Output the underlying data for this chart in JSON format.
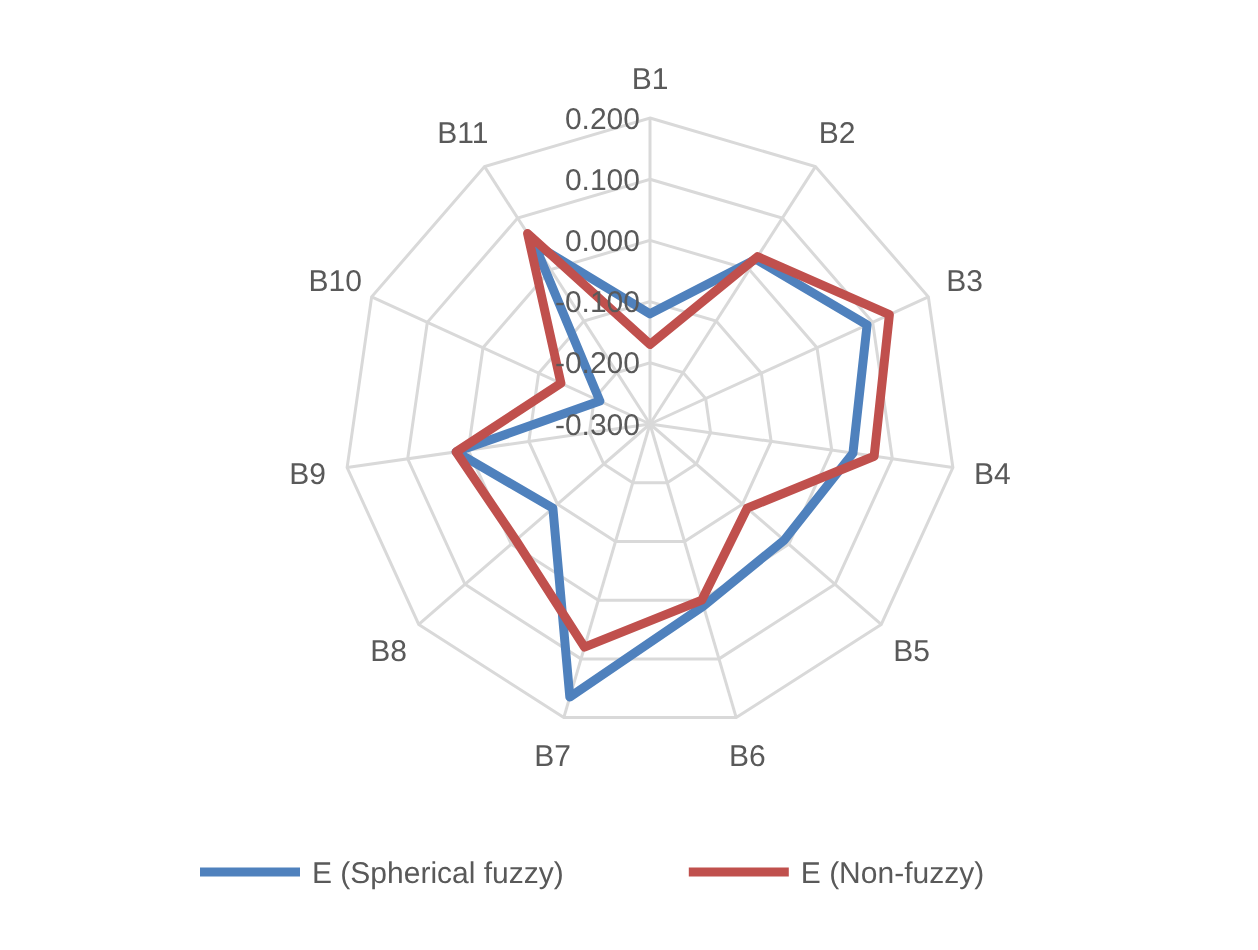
{
  "chart_data": {
    "type": "radar",
    "categories": [
      "B1",
      "B2",
      "B3",
      "B4",
      "B5",
      "B6",
      "B7",
      "B8",
      "B9",
      "B10",
      "B11"
    ],
    "series": [
      {
        "name": "E (Spherical fuzzy)",
        "color": "#4f81bd",
        "values": [
          -0.12,
          0.02,
          0.09,
          0.035,
          -0.01,
          0.01,
          0.165,
          -0.09,
          0.02,
          -0.21,
          0.05
        ]
      },
      {
        "name": "E (Non-fuzzy)",
        "color": "#c0504d",
        "values": [
          -0.17,
          0.025,
          0.13,
          0.07,
          -0.09,
          0.0,
          0.08,
          -0.01,
          0.02,
          -0.14,
          0.07
        ]
      }
    ],
    "ylim": [
      -0.3,
      0.2
    ],
    "yticks": [
      {
        "value": -0.3,
        "label": "-0.300"
      },
      {
        "value": -0.2,
        "label": "-0.200"
      },
      {
        "value": -0.1,
        "label": "-0.100"
      },
      {
        "value": 0,
        "label": "0.000"
      },
      {
        "value": 0.1,
        "label": "0.100"
      },
      {
        "value": 0.2,
        "label": "0.200"
      }
    ],
    "grid": true,
    "legend": "bottom",
    "line_style": "solid"
  }
}
